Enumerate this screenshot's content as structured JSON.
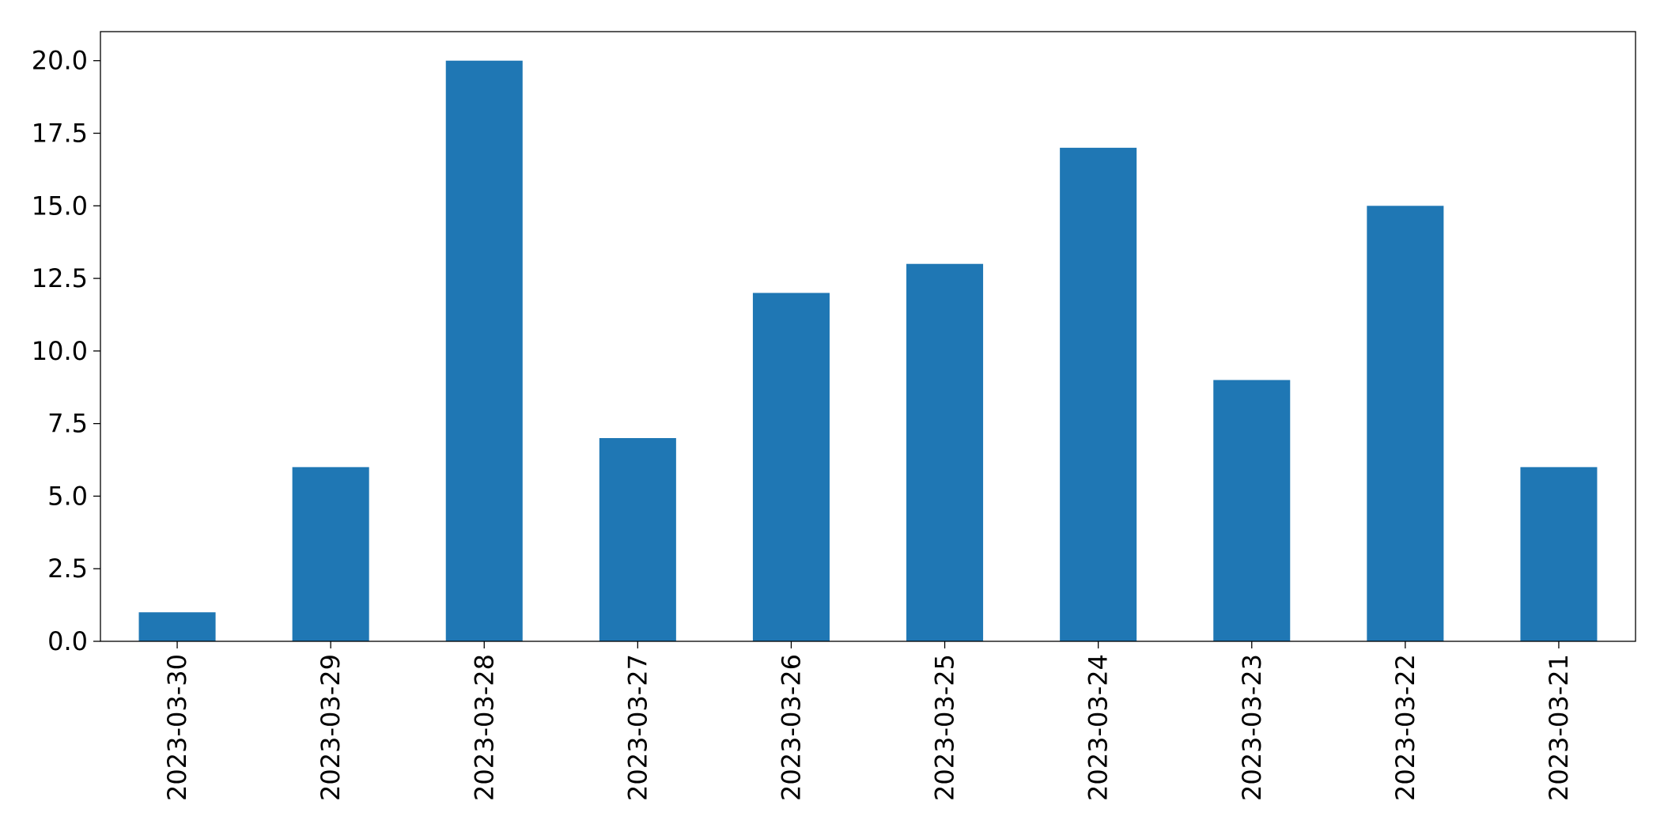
{
  "chart_data": {
    "type": "bar",
    "title": "",
    "xlabel": "",
    "ylabel": "",
    "categories": [
      "2023-03-30",
      "2023-03-29",
      "2023-03-28",
      "2023-03-27",
      "2023-03-26",
      "2023-03-25",
      "2023-03-24",
      "2023-03-23",
      "2023-03-22",
      "2023-03-21"
    ],
    "values": [
      1,
      6,
      20,
      7,
      12,
      13,
      17,
      9,
      15,
      6
    ],
    "ylim": [
      0,
      21
    ],
    "yticks": [
      0.0,
      2.5,
      5.0,
      7.5,
      10.0,
      12.5,
      15.0,
      17.5,
      20.0
    ],
    "ytick_labels": [
      "0.0",
      "2.5",
      "5.0",
      "7.5",
      "10.0",
      "12.5",
      "15.0",
      "17.5",
      "20.0"
    ],
    "bar_color": "#1f77b4",
    "grid": false,
    "legend": "none"
  }
}
